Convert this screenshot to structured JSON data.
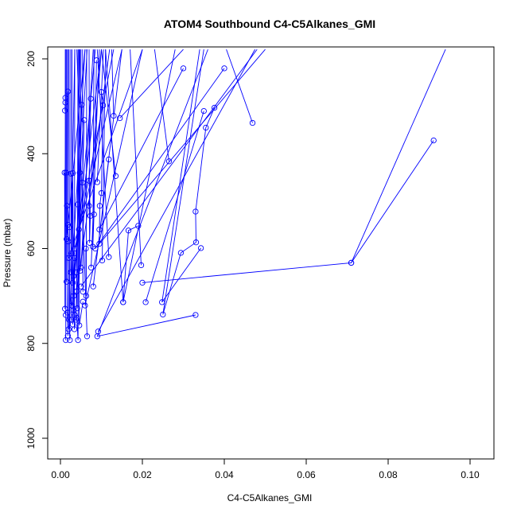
{
  "chart_data": {
    "type": "line",
    "title": "ATOM4 Southbound C4-C5Alkanes_GMI",
    "xlabel": "C4-C5Alkanes_GMI",
    "ylabel": "Pressure (mbar)",
    "xlim": [
      -0.003,
      0.106
    ],
    "ylim": [
      1045,
      180
    ],
    "y_reversed": true,
    "x_ticks": [
      "0.00",
      "0.02",
      "0.04",
      "0.06",
      "0.08",
      "0.10"
    ],
    "x_tick_values": [
      0,
      0.02,
      0.04,
      0.06,
      0.08,
      0.1
    ],
    "y_ticks": [
      "200",
      "400",
      "600",
      "800",
      "1000"
    ],
    "y_tick_values": [
      200,
      400,
      600,
      800,
      1000
    ],
    "grid": false,
    "legend": "none",
    "colors": {
      "series": "#0000ff",
      "axis": "#000000"
    },
    "series": [
      {
        "points": [
          [
            0.0911,
            372
          ],
          [
            0.071,
            630
          ],
          [
            0.02,
            672
          ],
          [
            0.012,
            1
          ]
        ]
      },
      {
        "points": [
          [
            0.071,
            630
          ],
          [
            0.094,
            180
          ]
        ]
      },
      {
        "points": [
          [
            0.0469,
            335
          ],
          [
            0.0405,
            180
          ]
        ]
      },
      {
        "points": [
          [
            0.0376,
            303
          ],
          [
            0.0355,
            345
          ],
          [
            0.033,
            522
          ],
          [
            0.0331,
            587
          ],
          [
            0.0294,
            609
          ],
          [
            0.025,
            739
          ],
          [
            0.035,
            180
          ]
        ]
      },
      {
        "points": [
          [
            0.033,
            740
          ],
          [
            0.009,
            785
          ],
          [
            0.036,
            180
          ]
        ]
      },
      {
        "points": [
          [
            0.0343,
            599
          ],
          [
            0.0248,
            713
          ],
          [
            0.034,
            180
          ]
        ]
      },
      {
        "points": [
          [
            0.0265,
            416
          ],
          [
            0.023,
            180
          ]
        ]
      },
      {
        "points": [
          [
            0.0208,
            713
          ],
          [
            0.035,
            310
          ]
        ]
      },
      {
        "points": [
          [
            0.0197,
            635
          ],
          [
            0.017,
            180
          ]
        ]
      },
      {
        "points": [
          [
            0.019,
            552
          ],
          [
            0.0166,
            562
          ],
          [
            0.0153,
            713
          ],
          [
            0.028,
            180
          ]
        ]
      },
      {
        "points": [
          [
            0.0153,
            713
          ],
          [
            0.011,
            180
          ]
        ]
      },
      {
        "points": [
          [
            0.0135,
            447
          ],
          [
            0.01,
            180
          ]
        ]
      },
      {
        "points": [
          [
            0.0145,
            325
          ],
          [
            0.03,
            180
          ]
        ]
      },
      {
        "points": [
          [
            0.013,
            320
          ],
          [
            0.0125,
            180
          ]
        ]
      },
      {
        "points": [
          [
            0.0118,
            412
          ],
          [
            0.008,
            680
          ],
          [
            0.015,
            180
          ]
        ]
      },
      {
        "points": [
          [
            0.0118,
            618
          ],
          [
            0.009,
            180
          ]
        ]
      },
      {
        "points": [
          [
            0.0102,
            625
          ],
          [
            0.011,
            180
          ]
        ]
      },
      {
        "points": [
          [
            0.01,
            270
          ],
          [
            0.0104,
            298
          ],
          [
            0.01,
            483
          ],
          [
            0.0096,
            510
          ],
          [
            0.0095,
            590
          ],
          [
            0.05,
            180
          ]
        ]
      },
      {
        "points": [
          [
            0.0092,
            775
          ],
          [
            0.0475,
            180
          ]
        ]
      },
      {
        "points": [
          [
            0.0088,
            203
          ],
          [
            0.0082,
            528
          ],
          [
            0.0079,
            596
          ],
          [
            0.0082,
            180
          ]
        ]
      },
      {
        "points": [
          [
            0.0074,
            284
          ],
          [
            0.007,
            457
          ],
          [
            0.0073,
            531
          ],
          [
            0.0071,
            588
          ],
          [
            0.007,
            180
          ]
        ]
      },
      {
        "points": [
          [
            0.0065,
            785
          ],
          [
            0.004,
            180
          ]
        ]
      },
      {
        "points": [
          [
            0.0058,
            329
          ],
          [
            0.0054,
            461
          ],
          [
            0.0055,
            691
          ],
          [
            0.0054,
            180
          ]
        ]
      },
      {
        "points": [
          [
            0.0052,
            297
          ],
          [
            0.0047,
            440
          ],
          [
            0.0048,
            647
          ],
          [
            0.005,
            180
          ]
        ]
      },
      {
        "points": [
          [
            0.0055,
            712
          ],
          [
            0.0046,
            762
          ],
          [
            0.0045,
            180
          ]
        ]
      },
      {
        "points": [
          [
            0.0042,
            507
          ],
          [
            0.004,
            650
          ],
          [
            0.0041,
            726
          ],
          [
            0.0043,
            180
          ]
        ]
      },
      {
        "points": [
          [
            0.004,
            746
          ],
          [
            0.0043,
            793
          ],
          [
            0.0046,
            180
          ]
        ]
      },
      {
        "points": [
          [
            0.0035,
            620
          ],
          [
            0.0032,
            658
          ],
          [
            0.0035,
            740
          ],
          [
            0.0034,
            770
          ],
          [
            0.0035,
            180
          ]
        ]
      },
      {
        "points": [
          [
            0.003,
            441
          ],
          [
            0.0032,
            730
          ],
          [
            0.003,
            760
          ],
          [
            0.0028,
            180
          ]
        ]
      },
      {
        "points": [
          [
            0.0026,
            442
          ],
          [
            0.0027,
            610
          ],
          [
            0.0026,
            750
          ],
          [
            0.0025,
            180
          ]
        ]
      },
      {
        "points": [
          [
            0.0022,
            555
          ],
          [
            0.0021,
            750
          ],
          [
            0.0023,
            793
          ],
          [
            0.0021,
            180
          ]
        ]
      },
      {
        "points": [
          [
            0.0018,
            269
          ],
          [
            0.0018,
            550
          ],
          [
            0.0019,
            585
          ],
          [
            0.0017,
            735
          ],
          [
            0.0018,
            784
          ],
          [
            0.0019,
            180
          ]
        ]
      },
      {
        "points": [
          [
            0.0016,
            510
          ],
          [
            0.0015,
            670
          ],
          [
            0.0016,
            180
          ]
        ]
      },
      {
        "points": [
          [
            0.0014,
            440
          ],
          [
            0.0013,
            740
          ],
          [
            0.0013,
            793
          ],
          [
            0.0014,
            180
          ]
        ]
      },
      {
        "points": [
          [
            0.0012,
            282
          ],
          [
            0.0011,
            309
          ],
          [
            0.0012,
            292
          ],
          [
            0.0012,
            180
          ]
        ]
      },
      {
        "points": [
          [
            0.001,
            440
          ],
          [
            0.0011,
            727
          ],
          [
            0.0012,
            180
          ]
        ]
      },
      {
        "points": [
          [
            0.0062,
            600
          ],
          [
            0.0063,
            700
          ],
          [
            0.0064,
            180
          ]
        ]
      },
      {
        "points": [
          [
            0.003,
            672
          ],
          [
            0.01,
            180
          ]
        ]
      },
      {
        "points": [
          [
            0.0028,
            720
          ],
          [
            0.0085,
            180
          ]
        ]
      },
      {
        "points": [
          [
            0.004,
            690
          ],
          [
            0.012,
            180
          ]
        ]
      },
      {
        "points": [
          [
            0.005,
            680
          ],
          [
            0.048,
            180
          ]
        ]
      },
      {
        "points": [
          [
            0.002,
            770
          ],
          [
            0.006,
            180
          ]
        ]
      },
      {
        "points": [
          [
            0.006,
            720
          ],
          [
            0.02,
            180
          ]
        ]
      },
      {
        "points": [
          [
            0.0035,
            600
          ],
          [
            0.015,
            180
          ]
        ]
      },
      {
        "points": [
          [
            0.0045,
            560
          ],
          [
            0.013,
            180
          ]
        ]
      },
      {
        "points": [
          [
            0.0075,
            640
          ],
          [
            0.0095,
            180
          ]
        ]
      },
      {
        "points": [
          [
            0.007,
            510
          ],
          [
            0.01,
            180
          ]
        ]
      },
      {
        "points": [
          [
            0.009,
            460
          ],
          [
            0.0105,
            180
          ]
        ]
      },
      {
        "points": [
          [
            0.0095,
            560
          ],
          [
            0.03,
            220
          ]
        ]
      },
      {
        "points": [
          [
            0.0085,
            600
          ],
          [
            0.04,
            220
          ]
        ]
      },
      {
        "points": [
          [
            0.005,
            640
          ],
          [
            0.008,
            180
          ]
        ]
      },
      {
        "points": [
          [
            0.0032,
            700
          ],
          [
            0.0065,
            180
          ]
        ]
      },
      {
        "points": [
          [
            0.0038,
            750
          ],
          [
            0.0048,
            180
          ]
        ]
      },
      {
        "points": [
          [
            0.0025,
            650
          ],
          [
            0.0035,
            180
          ]
        ]
      },
      {
        "points": [
          [
            0.002,
            620
          ],
          [
            0.02,
            180
          ]
        ]
      },
      {
        "points": [
          [
            0.0015,
            580
          ],
          [
            0.006,
            180
          ]
        ]
      }
    ]
  }
}
